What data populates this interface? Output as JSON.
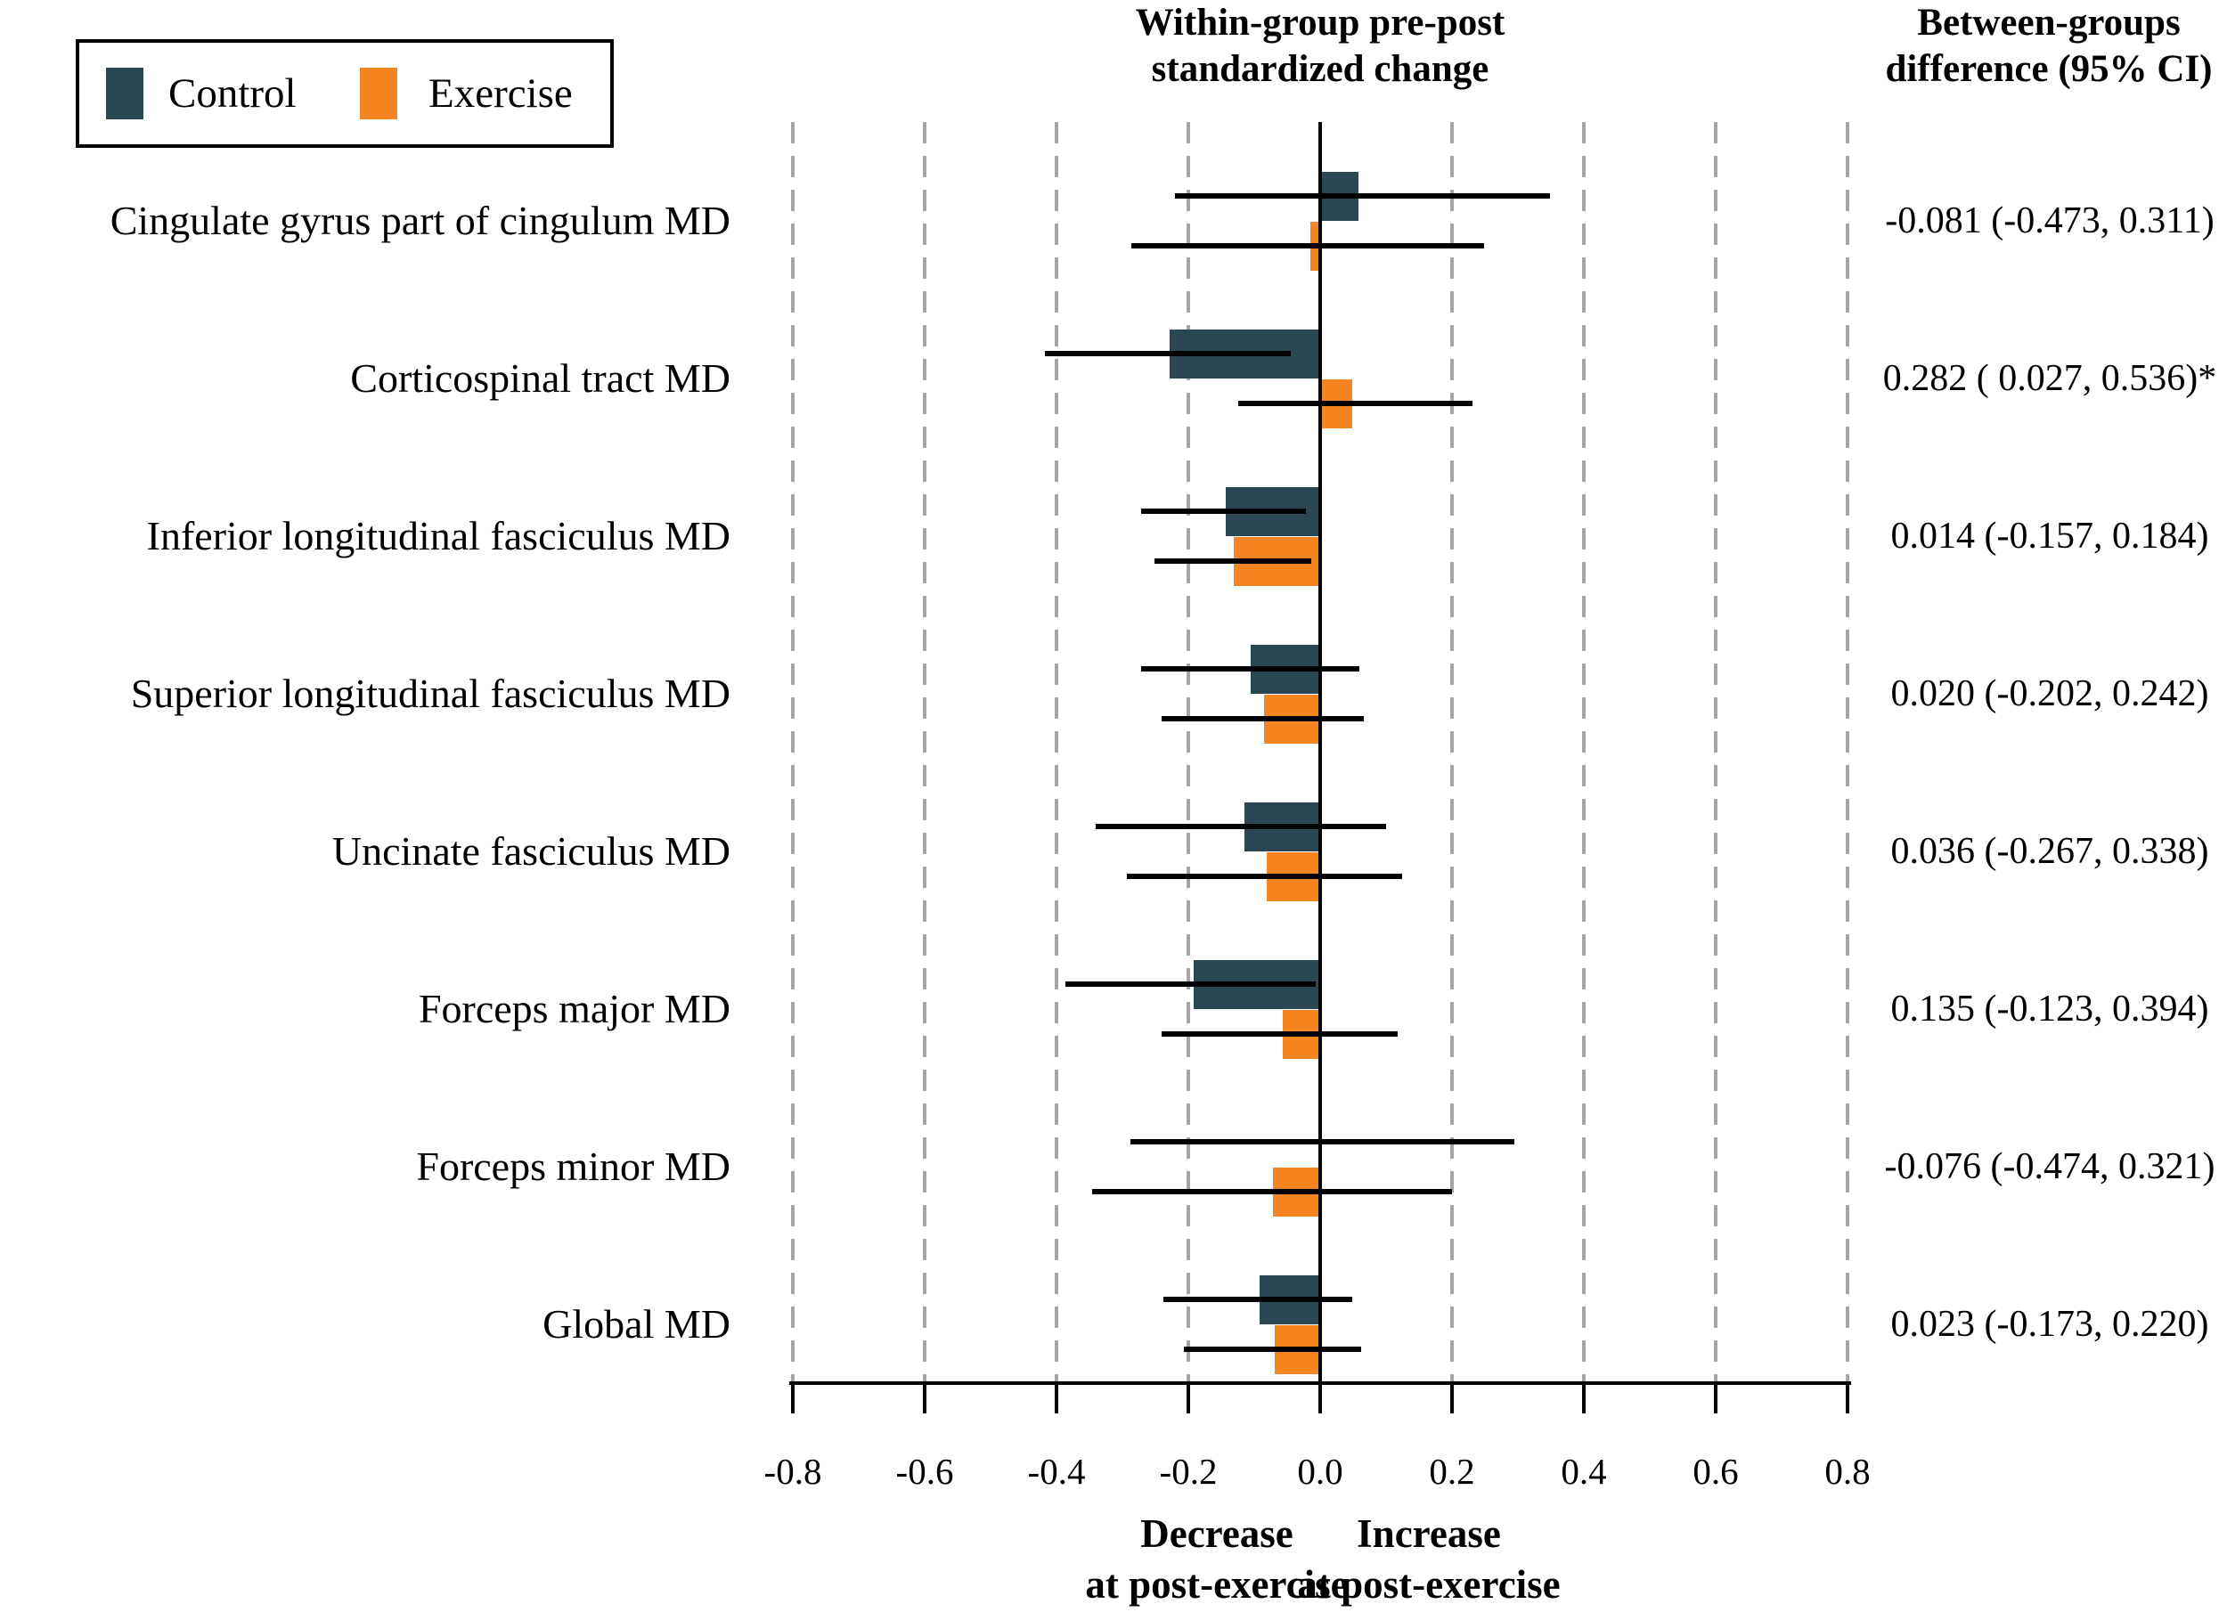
{
  "figure": {
    "legend": {
      "items": [
        {
          "label": "Control",
          "color": "#2B4852"
        },
        {
          "label": "Exercise",
          "color": "#F58521"
        }
      ]
    },
    "col_header_within": {
      "line1": "Within-group pre-post",
      "line2": "standardized change"
    },
    "col_header_between": {
      "line1": "Between-groups",
      "line2": "difference (95% CI)"
    },
    "x_axis": {
      "tick_labels": [
        "-0.8",
        "-0.6",
        "-0.4",
        "-0.2",
        "0.0",
        "0.2",
        "0.4",
        "0.6",
        "0.8"
      ],
      "left_direction": {
        "line1": "Decrease",
        "line2": "at post-exercise"
      },
      "right_direction": {
        "line1": "Increase",
        "line2": "at post-exercise"
      }
    },
    "colors": {
      "control": "#2B4852",
      "exercise": "#F58521",
      "gridline": "#A6A6A6",
      "axis": "#000000",
      "background": "#FFFFFF"
    }
  },
  "chart_data": {
    "type": "bar",
    "orientation": "horizontal-forest",
    "title": "Within-group pre-post standardized change",
    "right_column_title": "Between-groups difference (95% CI)",
    "categories": [
      "Cingulate gyrus part of cingulum MD",
      "Corticospinal tract MD",
      "Inferior longitudinal fasciculus MD",
      "Superior longitudinal fasciculus MD",
      "Uncinate fasciculus MD",
      "Forceps major MD",
      "Forceps minor MD",
      "Global MD"
    ],
    "series": [
      {
        "name": "Control",
        "color": "#2B4852",
        "values": [
          0.058,
          -0.228,
          -0.143,
          -0.105,
          -0.115,
          -0.192,
          0.003,
          -0.092
        ],
        "ci": [
          [
            -0.22,
            0.348
          ],
          [
            -0.417,
            -0.045
          ],
          [
            -0.272,
            -0.021
          ],
          [
            -0.272,
            0.059
          ],
          [
            -0.341,
            0.1
          ],
          [
            -0.386,
            -0.007
          ],
          [
            -0.288,
            0.295
          ],
          [
            -0.238,
            0.048
          ]
        ]
      },
      {
        "name": "Exercise",
        "color": "#F58521",
        "values": [
          -0.015,
          0.048,
          -0.131,
          -0.085,
          -0.081,
          -0.057,
          -0.072,
          -0.069
        ],
        "ci": [
          [
            -0.286,
            0.248
          ],
          [
            -0.124,
            0.231
          ],
          [
            -0.252,
            -0.014
          ],
          [
            -0.241,
            0.066
          ],
          [
            -0.293,
            0.124
          ],
          [
            -0.241,
            0.117
          ],
          [
            -0.346,
            0.2
          ],
          [
            -0.207,
            0.062
          ]
        ]
      }
    ],
    "between_difference_labels": [
      "-0.081 (-0.473, 0.311)",
      "0.282 ( 0.027, 0.536)*",
      "0.014 (-0.157, 0.184)",
      "0.020 (-0.202, 0.242)",
      "0.036 (-0.267, 0.338)",
      "0.135 (-0.123, 0.394)",
      "-0.076 (-0.474, 0.321)",
      "0.023 (-0.173, 0.220)"
    ],
    "xlim": [
      -0.8,
      0.8
    ],
    "x_ticks": [
      -0.8,
      -0.6,
      -0.4,
      -0.2,
      0.0,
      0.2,
      0.4,
      0.6,
      0.8
    ],
    "grid": "dashed-vertical-at-ticks-except-zero",
    "zero_line": true,
    "legend_position": "top-left",
    "significance_marker": "*"
  }
}
